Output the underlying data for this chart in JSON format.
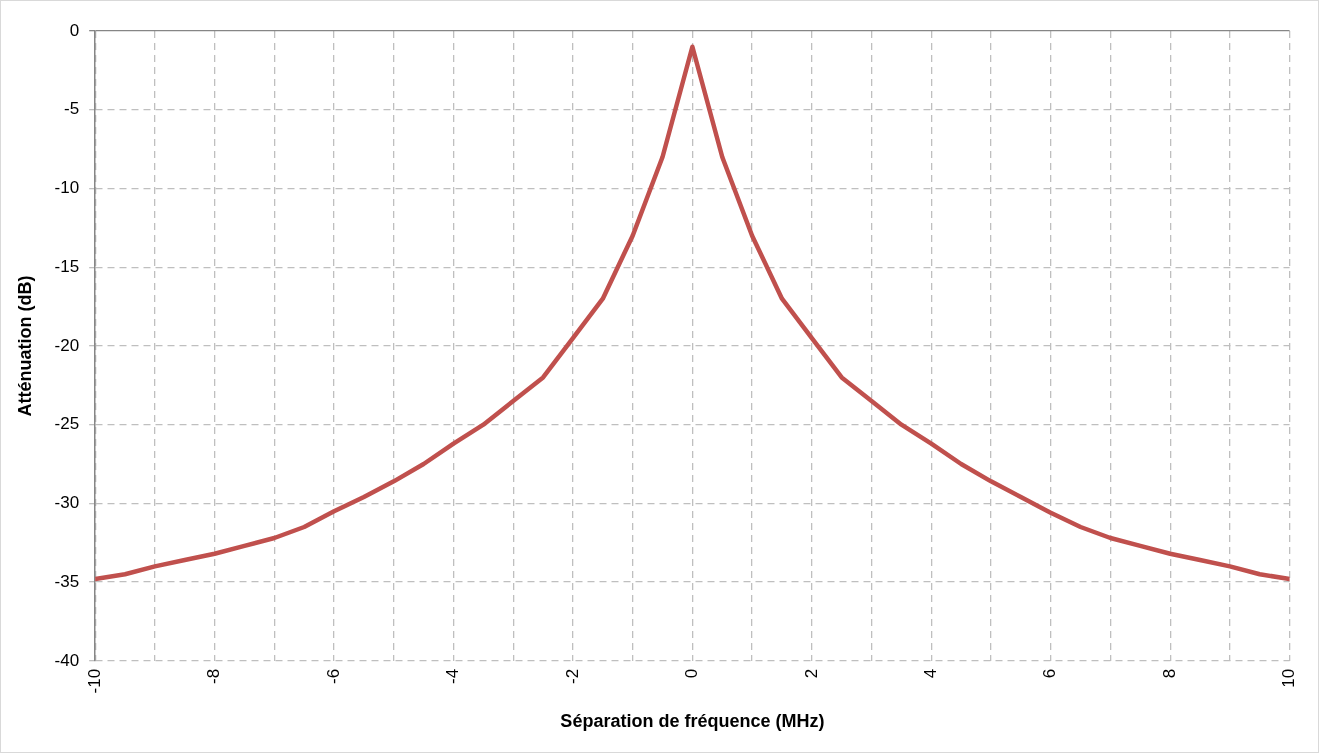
{
  "chart_data": {
    "type": "line",
    "xlabel": "Séparation de fréquence (MHz)",
    "ylabel": "Atténuation (dB)",
    "x": [
      -10,
      -9.5,
      -9,
      -8.5,
      -8,
      -7.5,
      -7,
      -6.5,
      -6,
      -5.5,
      -5,
      -4.5,
      -4,
      -3.5,
      -3,
      -2.5,
      -2,
      -1.5,
      -1,
      -0.5,
      0,
      0.5,
      1,
      1.5,
      2,
      2.5,
      3,
      3.5,
      4,
      4.5,
      5,
      5.5,
      6,
      6.5,
      7,
      7.5,
      8,
      8.5,
      9,
      9.5,
      10
    ],
    "series": [
      {
        "color": "#c0504d",
        "values": [
          -34.8,
          -34.5,
          -34,
          -33.6,
          -33.2,
          -32.7,
          -32.2,
          -31.5,
          -30.5,
          -29.6,
          -28.6,
          -27.5,
          -26.2,
          -25,
          -23.5,
          -22,
          -19.5,
          -17,
          -13,
          -8,
          -1,
          -8,
          -13,
          -17,
          -19.5,
          -22,
          -23.5,
          -25,
          -26.2,
          -27.5,
          -28.6,
          -29.6,
          -30.6,
          -31.5,
          -32.2,
          -32.7,
          -33.2,
          -33.6,
          -34,
          -34.5,
          -34.8
        ]
      }
    ],
    "xlim": [
      -10,
      10
    ],
    "xticks": [
      -10,
      {
        "value": -9,
        "label": null
      },
      -8,
      {
        "value": -7,
        "label": null
      },
      -6,
      {
        "value": -5,
        "label": null
      },
      -4,
      {
        "value": -3,
        "label": null
      },
      -2,
      {
        "value": -1,
        "label": null
      },
      0,
      {
        "value": 1,
        "label": null
      },
      2,
      {
        "value": 3,
        "label": null
      },
      4,
      {
        "value": 5,
        "label": null
      },
      6,
      {
        "value": 7,
        "label": null
      },
      8,
      {
        "value": 9,
        "label": null
      },
      10
    ],
    "ylim": [
      -40,
      0
    ],
    "yticks": [
      -40,
      -35,
      -30,
      -25,
      -20,
      -15,
      -10,
      -5,
      0
    ],
    "grid": true,
    "legend": false,
    "marker": "none",
    "line_style": "solid"
  }
}
